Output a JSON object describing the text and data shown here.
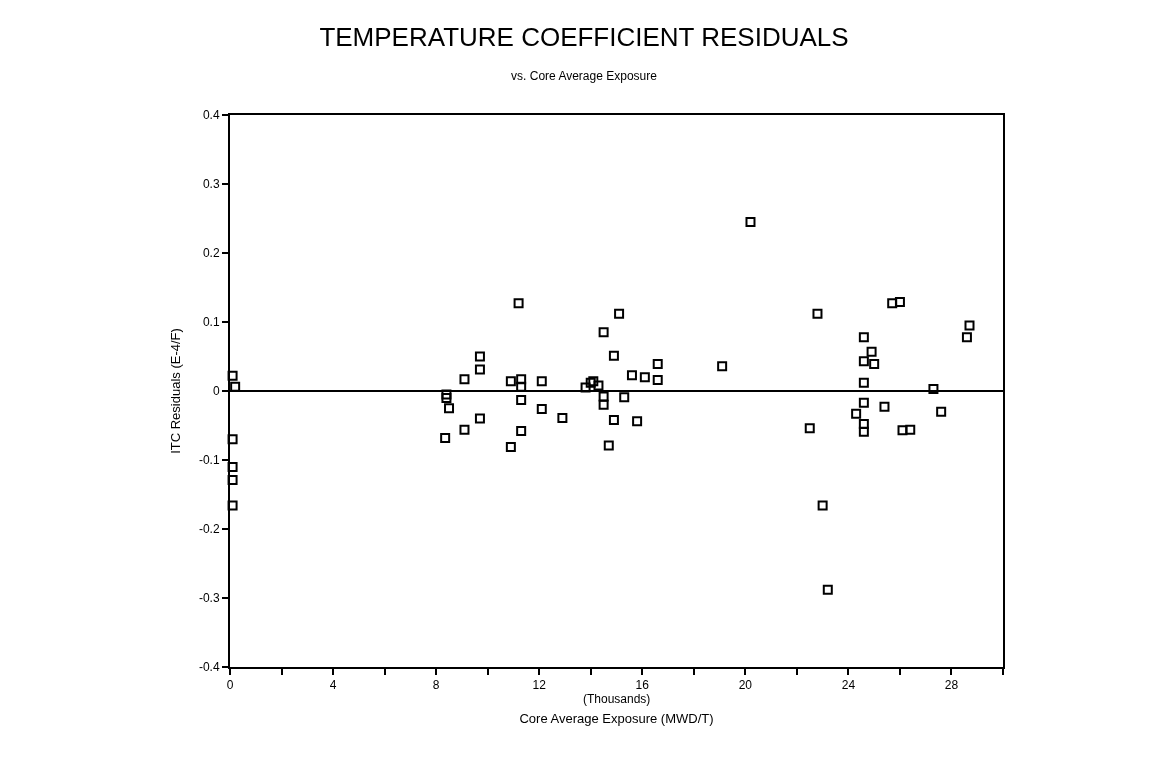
{
  "chart_data": {
    "type": "scatter",
    "title": "TEMPERATURE COEFFICIENT RESIDUALS",
    "subtitle": "vs. Core Average Exposure",
    "xlabel": "Core Average Exposure (MWD/T)",
    "ylabel": "ITC Residuals (E-4/F)",
    "annotations": [
      "(Thousands)"
    ],
    "marker": "square",
    "xlim": [
      0,
      30
    ],
    "ylim": [
      -0.4,
      0.4
    ],
    "xticks": [
      0,
      {
        "value": 2,
        "label": null
      },
      4,
      {
        "value": 6,
        "label": null
      },
      8,
      {
        "value": 10,
        "label": null
      },
      12,
      {
        "value": 14,
        "label": null
      },
      16,
      {
        "value": 18,
        "label": null
      },
      20,
      {
        "value": 22,
        "label": null
      },
      24,
      {
        "value": 26,
        "label": null
      },
      28,
      {
        "value": 30,
        "label": null
      }
    ],
    "yticks": [
      -0.4,
      -0.3,
      -0.2,
      -0.1,
      0,
      0.1,
      0.2,
      0.3,
      0.4
    ],
    "ref_lines": [
      {
        "axis": "y",
        "value": 0,
        "color": "#000000"
      }
    ],
    "series": [
      {
        "color": "#000000",
        "x": [
          0.1,
          0.2,
          0.1,
          0.1,
          0.1,
          0.1,
          8.4,
          8.4,
          8.5,
          8.35,
          9.1,
          9.1,
          9.7,
          9.7,
          9.7,
          10.9,
          10.9,
          11.2,
          11.3,
          11.3,
          11.3,
          11.3,
          12.1,
          12.1,
          12.9,
          13.8,
          14.0,
          14.1,
          14.3,
          14.5,
          14.5,
          14.5,
          14.7,
          14.9,
          14.9,
          15.1,
          15.3,
          15.6,
          15.8,
          16.1,
          16.6,
          16.6,
          19.1,
          20.2,
          22.5,
          22.8,
          23.0,
          23.2,
          24.3,
          24.6,
          24.6,
          24.6,
          24.6,
          24.6,
          24.6,
          24.9,
          25.0,
          25.4,
          25.7,
          26.0,
          26.1,
          26.4,
          27.3,
          27.6,
          28.6,
          28.7
        ],
        "values": [
          0.022,
          0.006,
          -0.07,
          -0.11,
          -0.129,
          -0.166,
          -0.005,
          -0.01,
          -0.025,
          -0.068,
          0.017,
          -0.056,
          0.05,
          0.031,
          -0.04,
          0.014,
          -0.081,
          0.127,
          0.017,
          0.006,
          -0.013,
          -0.058,
          0.014,
          -0.026,
          -0.039,
          0.005,
          0.012,
          0.014,
          0.008,
          0.085,
          -0.008,
          -0.02,
          -0.079,
          0.051,
          -0.042,
          0.112,
          -0.009,
          0.023,
          -0.044,
          0.02,
          0.039,
          0.016,
          0.036,
          0.245,
          -0.054,
          0.112,
          -0.166,
          -0.288,
          -0.033,
          0.078,
          0.043,
          0.012,
          -0.017,
          -0.048,
          -0.059,
          0.057,
          0.039,
          -0.023,
          0.127,
          0.129,
          -0.057,
          -0.056,
          0.003,
          -0.03,
          0.078,
          0.095
        ]
      }
    ]
  }
}
